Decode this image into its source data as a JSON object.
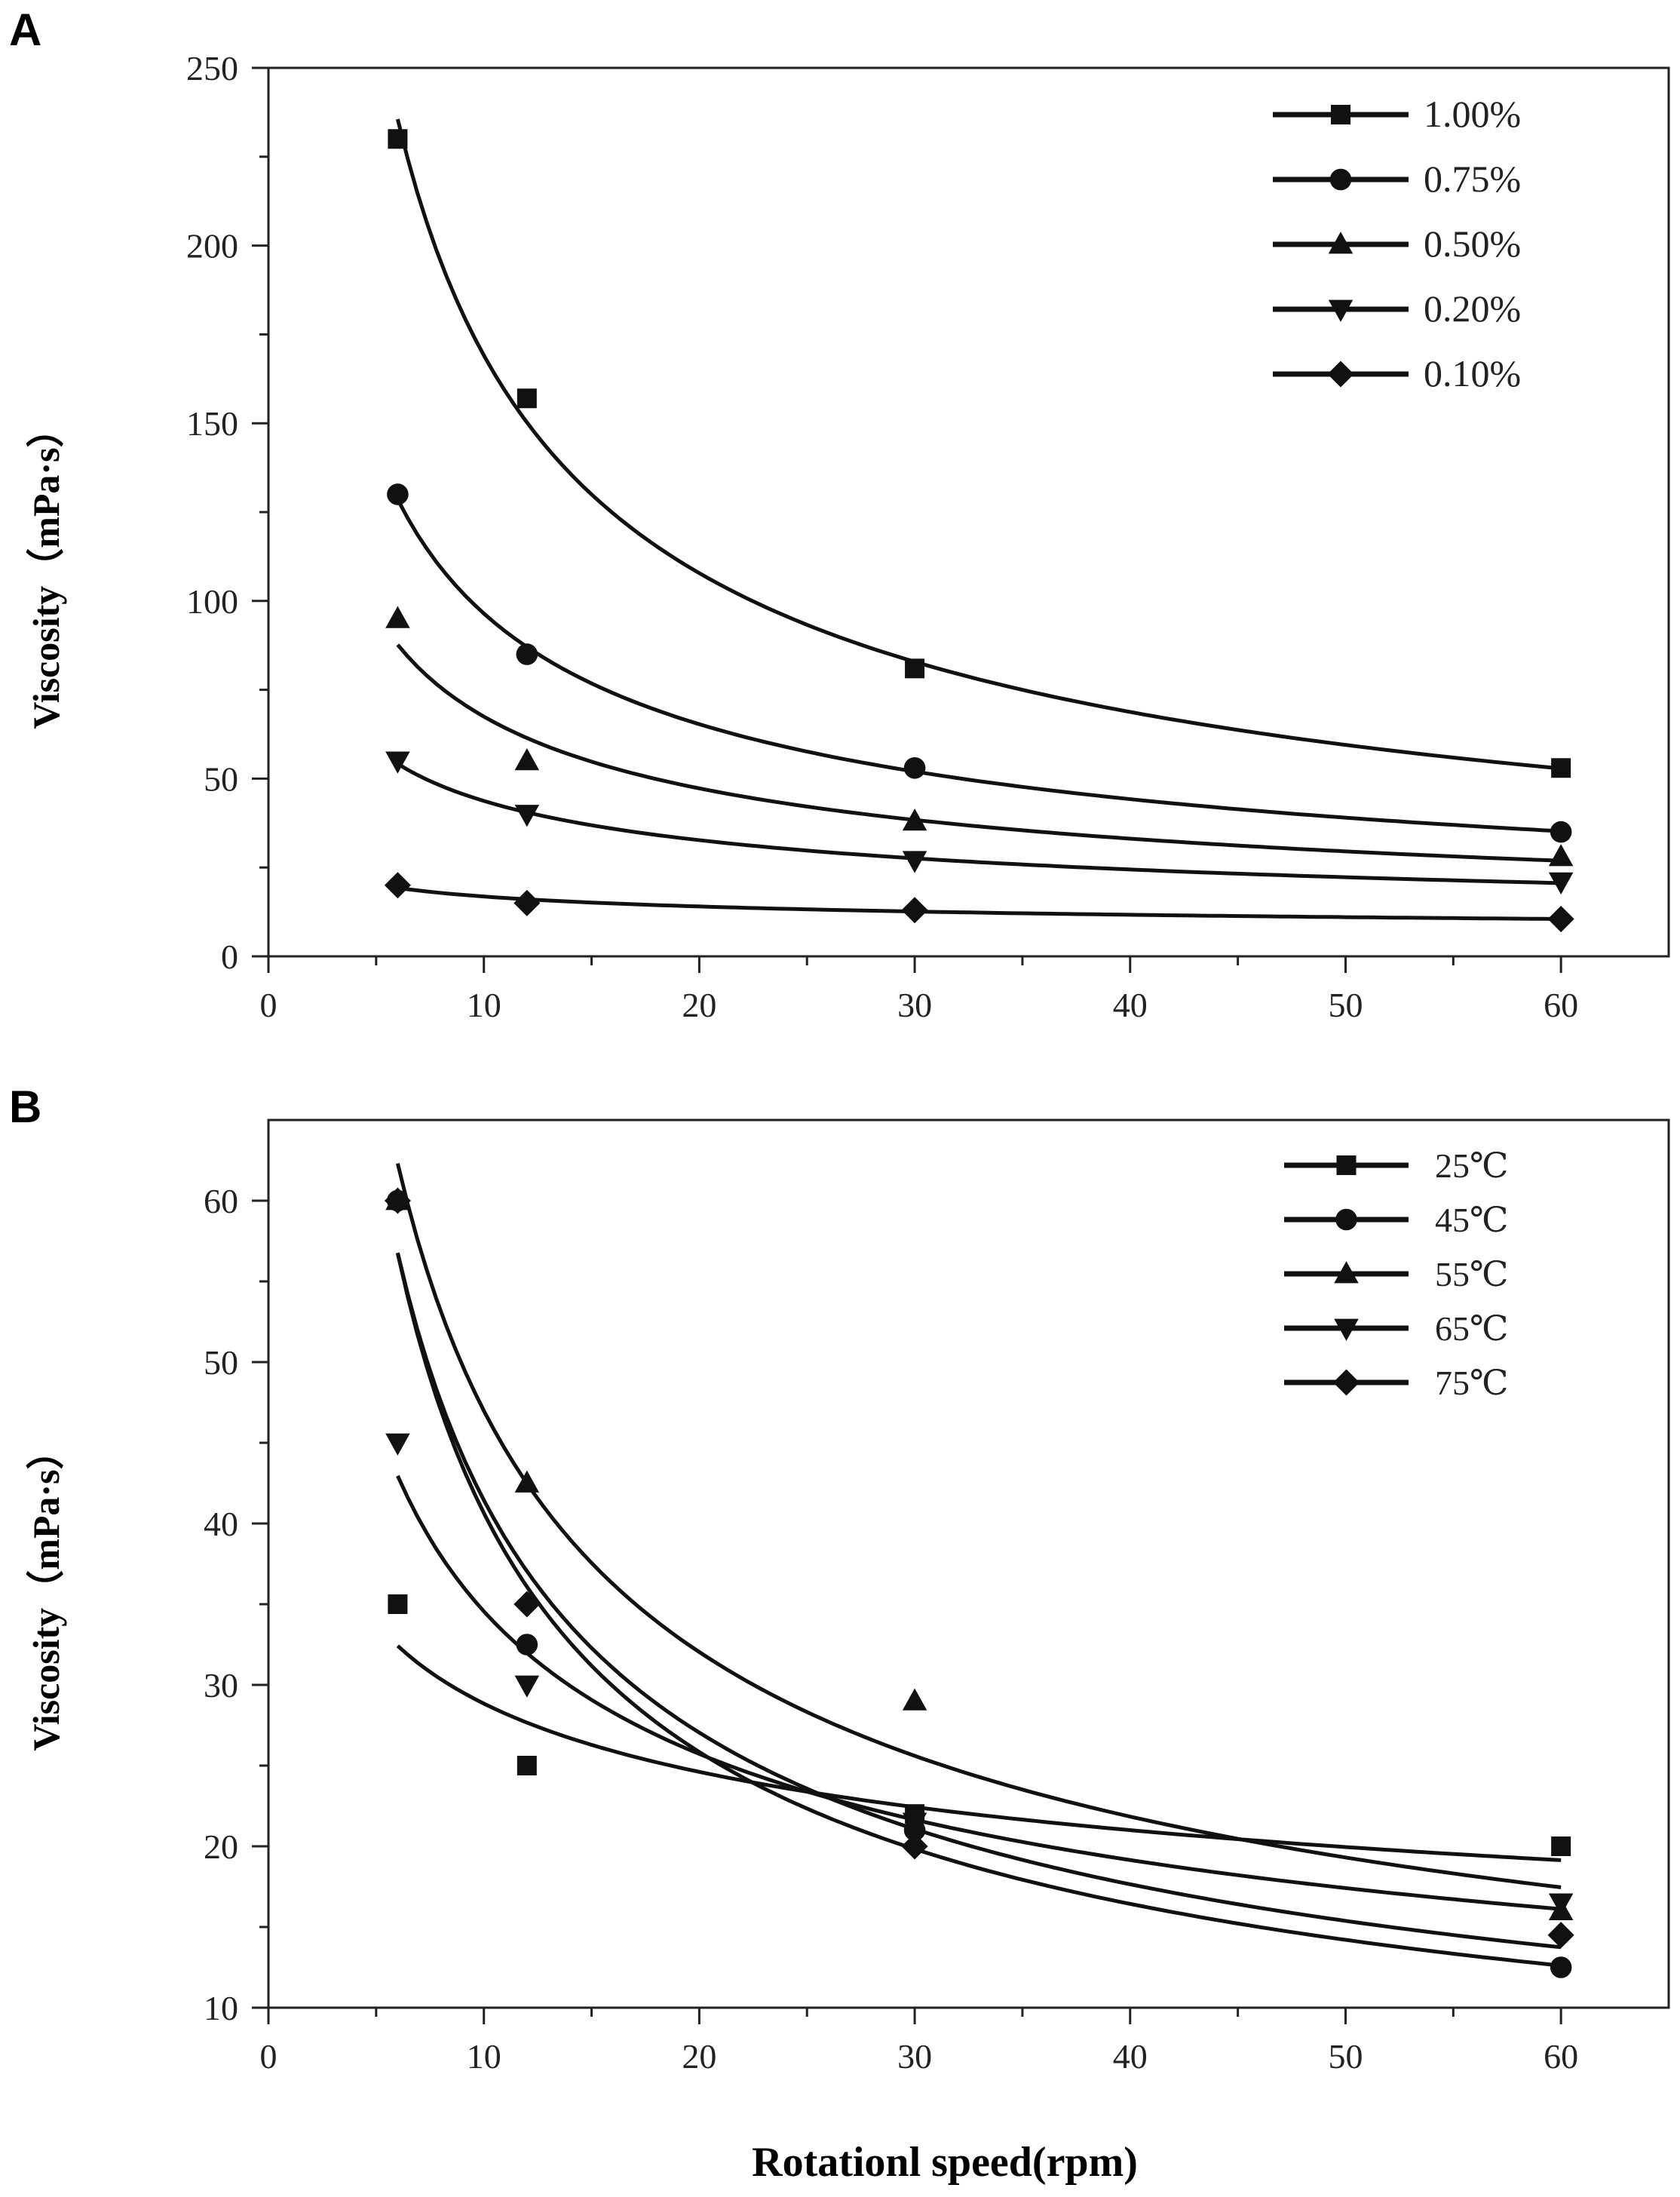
{
  "chart_data": [
    {
      "panel_label": "A",
      "type": "scatter",
      "xlabel": "",
      "ylabel": "Viscosity（mPa·s）",
      "xlim": [
        0,
        65
      ],
      "ylim": [
        0,
        250
      ],
      "xticks": [
        0,
        10,
        20,
        30,
        40,
        50,
        60
      ],
      "yticks": [
        0,
        50,
        100,
        150,
        200,
        250
      ],
      "x": [
        6,
        12,
        30,
        60
      ],
      "fit": "power",
      "legend_position": "top-right",
      "series": [
        {
          "name": "1.00%",
          "marker": "square",
          "values": [
            230,
            157,
            81,
            53
          ]
        },
        {
          "name": "0.75%",
          "marker": "circle",
          "values": [
            130,
            85,
            53,
            35
          ]
        },
        {
          "name": "0.50%",
          "marker": "triangle-up",
          "values": [
            95,
            55,
            38,
            28
          ]
        },
        {
          "name": "0.20%",
          "marker": "triangle-down",
          "values": [
            55,
            40,
            27,
            21
          ]
        },
        {
          "name": "0.10%",
          "marker": "diamond",
          "values": [
            20,
            15,
            13,
            10.5
          ]
        }
      ]
    },
    {
      "panel_label": "B",
      "type": "scatter",
      "xlabel": "Rotationl speed(rpm)",
      "ylabel": "Viscosity（mPa·s）",
      "xlim": [
        0,
        65
      ],
      "ylim": [
        10,
        65
      ],
      "xticks": [
        0,
        10,
        20,
        30,
        40,
        50,
        60
      ],
      "yticks": [
        10,
        20,
        30,
        40,
        50,
        60
      ],
      "x": [
        6,
        12,
        30,
        60
      ],
      "fit": "power",
      "legend_position": "top-right",
      "series": [
        {
          "name": "25℃",
          "marker": "square",
          "values": [
            35,
            25,
            22,
            20
          ]
        },
        {
          "name": "45℃",
          "marker": "circle",
          "values": [
            60,
            32.5,
            21,
            12.5
          ]
        },
        {
          "name": "55℃",
          "marker": "triangle-up",
          "values": [
            60,
            42.5,
            29,
            16
          ]
        },
        {
          "name": "65℃",
          "marker": "triangle-down",
          "values": [
            45,
            30,
            21.5,
            16.5
          ]
        },
        {
          "name": "75℃",
          "marker": "diamond",
          "values": [
            60,
            35,
            20,
            14.5
          ]
        }
      ]
    }
  ]
}
